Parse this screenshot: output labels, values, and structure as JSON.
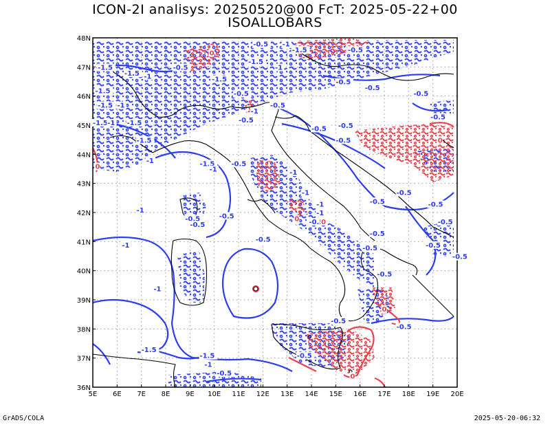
{
  "title_line1": "ICON-2I analisys: 20250520@00 FcT: 2025-05-22+00",
  "title_line2": "ISOALLOBARS",
  "footer_left": "GrADS/COLA",
  "footer_right": "2025-05-20-06:32",
  "map": {
    "lon_range": [
      5,
      20
    ],
    "lat_range": [
      36,
      48
    ],
    "lon_ticks": [
      "5E",
      "6E",
      "7E",
      "8E",
      "9E",
      "10E",
      "11E",
      "12E",
      "13E",
      "14E",
      "15E",
      "16E",
      "17E",
      "18E",
      "19E",
      "20E"
    ],
    "lat_ticks": [
      "36N",
      "37N",
      "38N",
      "39N",
      "40N",
      "41N",
      "42N",
      "43N",
      "44N",
      "45N",
      "46N",
      "47N",
      "48N"
    ],
    "gridlines": true,
    "colors": {
      "negative_contour": "#2a3cf5",
      "positive_contour": "#e8434b",
      "coast": "#000000",
      "grid": "#9a9a9a"
    }
  },
  "contour_labels": [
    {
      "text": "-0.5",
      "lon": 11.6,
      "lat": 47.7,
      "sign": "neg"
    },
    {
      "text": "-1",
      "lon": 12.8,
      "lat": 47.7,
      "sign": "neg"
    },
    {
      "text": "-1.5",
      "lon": 13.2,
      "lat": 47.5,
      "sign": "neg"
    },
    {
      "text": "-1.5",
      "lon": 11.4,
      "lat": 47.1,
      "sign": "neg"
    },
    {
      "text": "-1",
      "lon": 12.5,
      "lat": 46.9,
      "sign": "neg"
    },
    {
      "text": "-0.5",
      "lon": 15.5,
      "lat": 47.5,
      "sign": "neg"
    },
    {
      "text": "-1.5",
      "lon": 5.2,
      "lat": 46.9,
      "sign": "neg"
    },
    {
      "text": "-1.5",
      "lon": 6.3,
      "lat": 46.7,
      "sign": "neg"
    },
    {
      "text": "-1",
      "lon": 7.1,
      "lat": 46.6,
      "sign": "neg"
    },
    {
      "text": "-0.5",
      "lon": 8.3,
      "lat": 46.9,
      "sign": "neg"
    },
    {
      "text": "-1.5",
      "lon": 9.9,
      "lat": 46.5,
      "sign": "neg"
    },
    {
      "text": "-0.5",
      "lon": 15.0,
      "lat": 46.4,
      "sign": "neg"
    },
    {
      "text": "-0.5",
      "lon": 16.2,
      "lat": 46.2,
      "sign": "neg"
    },
    {
      "text": "-0.5",
      "lon": 18.2,
      "lat": 46.0,
      "sign": "neg"
    },
    {
      "text": "-0.5",
      "lon": 18.9,
      "lat": 45.2,
      "sign": "neg"
    },
    {
      "text": "-1.5",
      "lon": 5.1,
      "lat": 46.1,
      "sign": "neg"
    },
    {
      "text": "-1.5",
      "lon": 5.2,
      "lat": 45.6,
      "sign": "neg"
    },
    {
      "text": "-1",
      "lon": 6.0,
      "lat": 45.6,
      "sign": "neg"
    },
    {
      "text": "-1.5",
      "lon": 5.0,
      "lat": 45.0,
      "sign": "neg"
    },
    {
      "text": "-1",
      "lon": 5.6,
      "lat": 45.0,
      "sign": "neg"
    },
    {
      "text": "-1.5",
      "lon": 6.4,
      "lat": 45.0,
      "sign": "neg"
    },
    {
      "text": "-1.5",
      "lon": 6.8,
      "lat": 44.4,
      "sign": "neg"
    },
    {
      "text": "-1",
      "lon": 7.2,
      "lat": 43.7,
      "sign": "neg"
    },
    {
      "text": "-0.5",
      "lon": 10.8,
      "lat": 46.0,
      "sign": "neg"
    },
    {
      "text": "-1",
      "lon": 11.5,
      "lat": 45.4,
      "sign": "neg"
    },
    {
      "text": "-0.5",
      "lon": 11.0,
      "lat": 45.1,
      "sign": "neg"
    },
    {
      "text": "-0.5",
      "lon": 12.3,
      "lat": 45.6,
      "sign": "neg"
    },
    {
      "text": "-0.5",
      "lon": 14.0,
      "lat": 44.8,
      "sign": "neg"
    },
    {
      "text": "-0.5",
      "lon": 15.0,
      "lat": 44.4,
      "sign": "neg"
    },
    {
      "text": "-0.5",
      "lon": 15.1,
      "lat": 44.9,
      "sign": "neg"
    },
    {
      "text": "-1.5",
      "lon": 9.4,
      "lat": 43.6,
      "sign": "neg"
    },
    {
      "text": "-1",
      "lon": 9.8,
      "lat": 43.4,
      "sign": "neg"
    },
    {
      "text": "-0.5",
      "lon": 10.7,
      "lat": 43.6,
      "sign": "neg"
    },
    {
      "text": "-1",
      "lon": 13.1,
      "lat": 43.3,
      "sign": "neg"
    },
    {
      "text": "-1",
      "lon": 13.6,
      "lat": 42.6,
      "sign": "neg"
    },
    {
      "text": "-1",
      "lon": 14.2,
      "lat": 42.2,
      "sign": "neg"
    },
    {
      "text": "-1",
      "lon": 14.2,
      "lat": 41.9,
      "sign": "neg"
    },
    {
      "text": "-0.5",
      "lon": 13.9,
      "lat": 41.6,
      "sign": "neg"
    },
    {
      "text": "-0.5",
      "lon": 8.8,
      "lat": 41.7,
      "sign": "neg"
    },
    {
      "text": "-0.5",
      "lon": 9.0,
      "lat": 41.5,
      "sign": "neg"
    },
    {
      "text": "-0.5",
      "lon": 10.2,
      "lat": 41.8,
      "sign": "neg"
    },
    {
      "text": "-1",
      "lon": 6.8,
      "lat": 42.0,
      "sign": "neg"
    },
    {
      "text": "-1",
      "lon": 6.2,
      "lat": 40.8,
      "sign": "neg"
    },
    {
      "text": "-0.5",
      "lon": 11.7,
      "lat": 41.0,
      "sign": "neg"
    },
    {
      "text": "-1",
      "lon": 7.5,
      "lat": 39.3,
      "sign": "neg"
    },
    {
      "text": "-0.5",
      "lon": 16.4,
      "lat": 41.2,
      "sign": "neg"
    },
    {
      "text": "-0.5",
      "lon": 16.1,
      "lat": 40.7,
      "sign": "neg"
    },
    {
      "text": "-0.5",
      "lon": 16.7,
      "lat": 39.8,
      "sign": "neg"
    },
    {
      "text": "-0.5",
      "lon": 16.4,
      "lat": 42.3,
      "sign": "neg"
    },
    {
      "text": "-0.5",
      "lon": 17.5,
      "lat": 42.6,
      "sign": "neg"
    },
    {
      "text": "-0.5",
      "lon": 18.8,
      "lat": 42.2,
      "sign": "neg"
    },
    {
      "text": "-0.5",
      "lon": 19.2,
      "lat": 41.6,
      "sign": "neg"
    },
    {
      "text": "-0.5",
      "lon": 18.7,
      "lat": 40.8,
      "sign": "neg"
    },
    {
      "text": "-0.5",
      "lon": 19.8,
      "lat": 40.4,
      "sign": "neg"
    },
    {
      "text": "-0.5",
      "lon": 17.5,
      "lat": 38.0,
      "sign": "neg"
    },
    {
      "text": "-0.5",
      "lon": 14.8,
      "lat": 38.2,
      "sign": "neg"
    },
    {
      "text": "-0.5",
      "lon": 13.4,
      "lat": 37.0,
      "sign": "neg"
    },
    {
      "text": "-1.5",
      "lon": 7.0,
      "lat": 37.2,
      "sign": "neg"
    },
    {
      "text": "-1.5",
      "lon": 9.4,
      "lat": 37.0,
      "sign": "neg"
    },
    {
      "text": "-1",
      "lon": 9.6,
      "lat": 36.7,
      "sign": "neg"
    },
    {
      "text": "-0.5",
      "lon": 10.1,
      "lat": 36.4,
      "sign": "neg"
    },
    {
      "text": "0",
      "lon": 9.8,
      "lat": 47.4,
      "sign": "pos"
    },
    {
      "text": "0",
      "lon": 13.3,
      "lat": 41.7,
      "sign": "pos"
    },
    {
      "text": "0",
      "lon": 14.4,
      "lat": 41.6,
      "sign": "pos"
    },
    {
      "text": "0",
      "lon": 5.1,
      "lat": 43.5,
      "sign": "pos"
    },
    {
      "text": "0",
      "lon": 16.9,
      "lat": 38.6,
      "sign": "pos"
    },
    {
      "text": "0",
      "lon": 15.6,
      "lat": 36.3,
      "sign": "pos"
    },
    {
      "text": "0",
      "lon": 19.2,
      "lat": 44.4,
      "sign": "pos"
    }
  ]
}
